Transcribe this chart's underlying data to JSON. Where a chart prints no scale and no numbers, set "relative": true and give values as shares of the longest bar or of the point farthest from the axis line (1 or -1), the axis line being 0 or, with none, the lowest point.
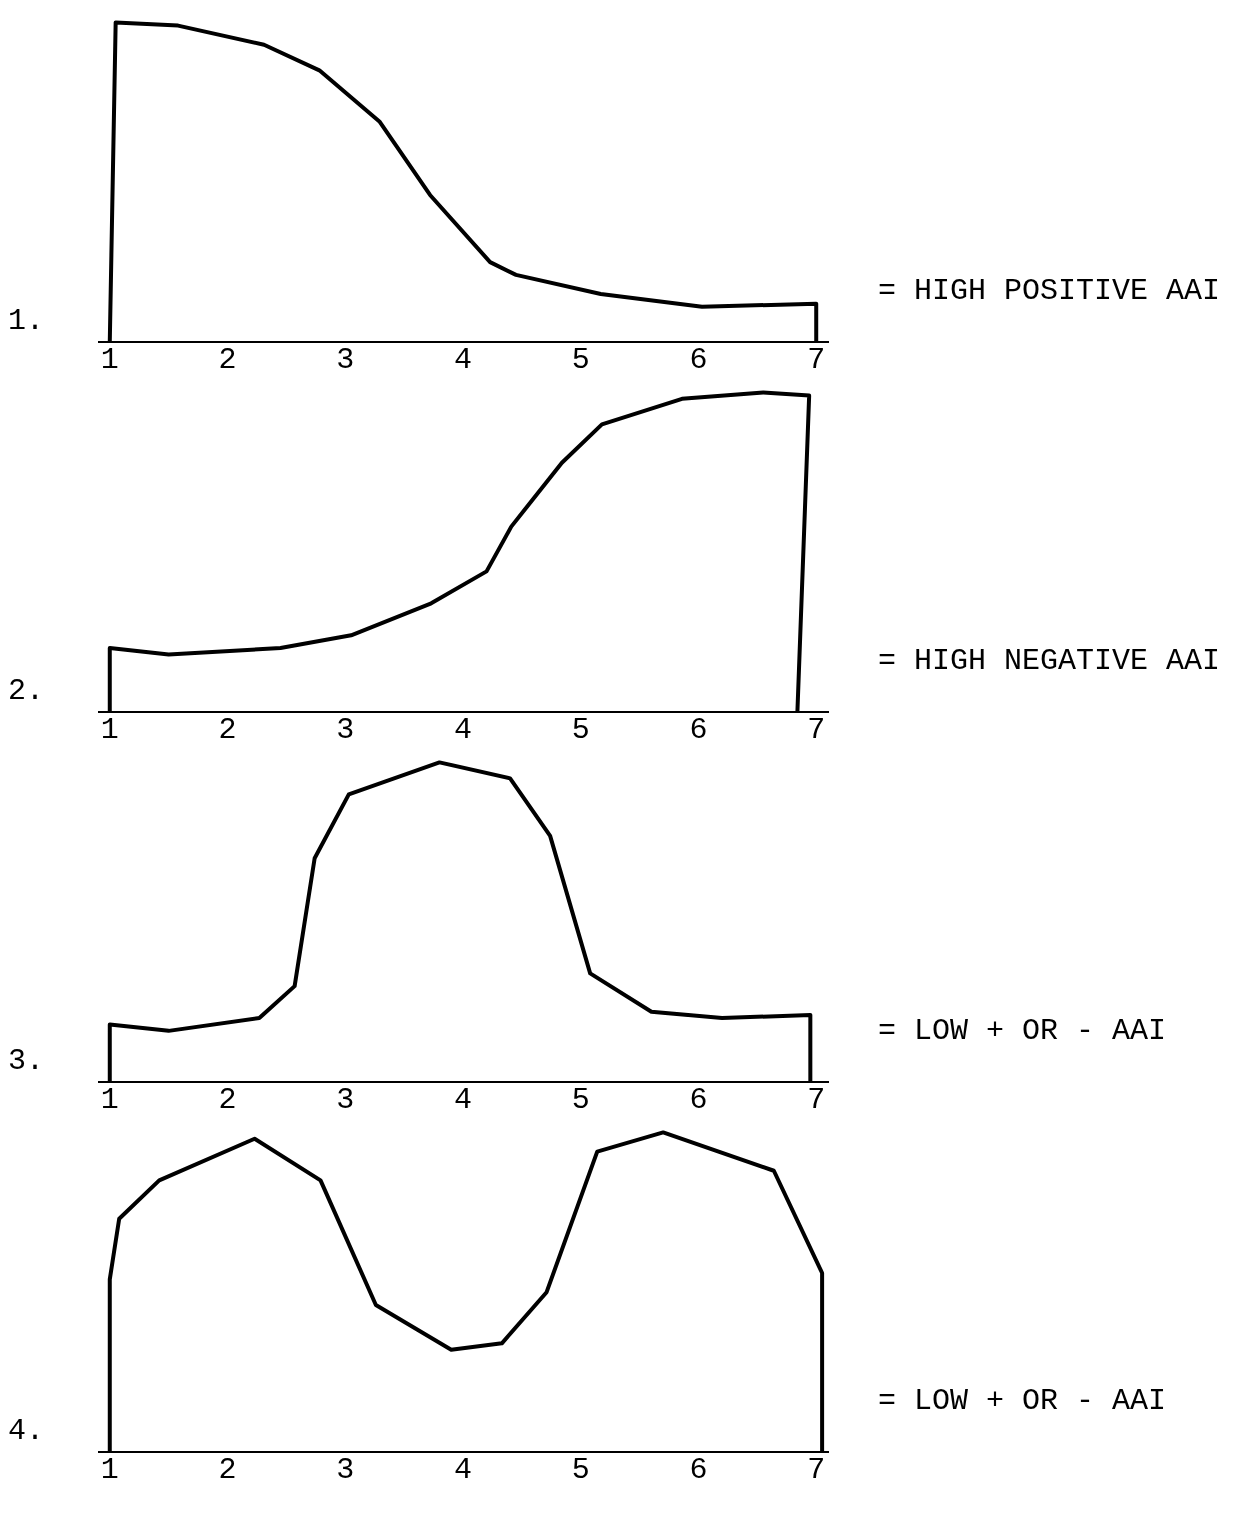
{
  "chart_data": [
    {
      "type": "line",
      "title": "1.",
      "annotations": [
        "= HIGH POSITIVE AAI"
      ],
      "relative": true,
      "xlim": [
        0.9,
        7.1
      ],
      "xticks": [
        1,
        2,
        3,
        4,
        5,
        6,
        7
      ],
      "grid": false,
      "series": [
        {
          "color": "#000000",
          "x": [
            1,
            1.05,
            1.58,
            2.31,
            2.78,
            3.29,
            3.72,
            4.23,
            4.45,
            5.17,
            6.03,
            7,
            7
          ],
          "values": [
            0,
            1,
            0.99,
            0.93,
            0.85,
            0.69,
            0.46,
            0.25,
            0.21,
            0.15,
            0.11,
            0.12,
            0
          ]
        }
      ]
    },
    {
      "type": "line",
      "title": "2.",
      "annotations": [
        "= HIGH NEGATIVE AAI"
      ],
      "relative": true,
      "xlim": [
        0.9,
        7.1
      ],
      "xticks": [
        1,
        2,
        3,
        4,
        5,
        6,
        7
      ],
      "grid": false,
      "series": [
        {
          "color": "#000000",
          "x": [
            1,
            1,
            1.5,
            2.45,
            3.05,
            3.73,
            4.2,
            4.41,
            4.84,
            5.18,
            5.86,
            6.55,
            6.94,
            6.84
          ],
          "values": [
            0,
            0.2,
            0.18,
            0.2,
            0.24,
            0.34,
            0.44,
            0.58,
            0.78,
            0.9,
            0.98,
            1,
            0.99,
            0
          ]
        }
      ]
    },
    {
      "type": "line",
      "title": "3.",
      "annotations": [
        "= LOW + OR - AAI"
      ],
      "relative": true,
      "xlim": [
        0.9,
        7.1
      ],
      "xticks": [
        1,
        2,
        3,
        4,
        5,
        6,
        7
      ],
      "grid": false,
      "series": [
        {
          "color": "#000000",
          "x": [
            1,
            1,
            1.5,
            2.27,
            2.57,
            2.74,
            3.03,
            3.8,
            4.4,
            4.74,
            5.08,
            5.6,
            6.2,
            6.95,
            6.95
          ],
          "values": [
            0,
            0.18,
            0.16,
            0.2,
            0.3,
            0.7,
            0.9,
            1,
            0.95,
            0.77,
            0.34,
            0.22,
            0.2,
            0.21,
            0
          ]
        }
      ]
    },
    {
      "type": "line",
      "title": "4.",
      "annotations": [
        "= LOW + OR - AAI"
      ],
      "relative": true,
      "xlim": [
        0.9,
        7.1
      ],
      "xticks": [
        1,
        2,
        3,
        4,
        5,
        6,
        7
      ],
      "grid": false,
      "series": [
        {
          "color": "#000000",
          "x": [
            1,
            1,
            1.08,
            1.42,
            2.23,
            2.79,
            3.26,
            3.9,
            4.33,
            4.71,
            5.14,
            5.7,
            6.64,
            7.05,
            7.05
          ],
          "values": [
            0,
            0.54,
            0.73,
            0.85,
            0.98,
            0.85,
            0.46,
            0.32,
            0.34,
            0.5,
            0.94,
            1,
            0.88,
            0.56,
            0
          ]
        }
      ]
    }
  ]
}
